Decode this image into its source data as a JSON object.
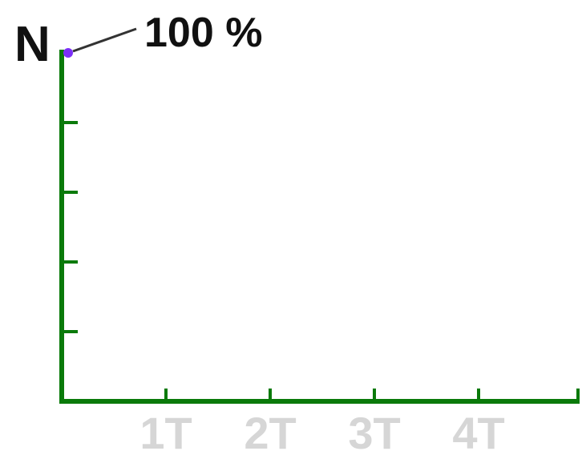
{
  "chart_data": {
    "type": "line",
    "title": "",
    "ylabel": "N",
    "xlabel": "",
    "categories": [
      "1T",
      "2T",
      "3T",
      "4T"
    ],
    "x_ticks": [
      "1T",
      "2T",
      "3T",
      "4T"
    ],
    "y_tick_count": 5,
    "xlim": [
      0,
      4
    ],
    "ylim": [
      0,
      100
    ],
    "series": [
      {
        "x": [
          0
        ],
        "y": [
          100
        ]
      }
    ],
    "annotation": {
      "text": "100 %",
      "x": 0,
      "y": 100
    },
    "grid": false,
    "legend": "none",
    "colors": {
      "axis": "#0a7a0a",
      "point": "#7b2ff7",
      "tick_label": "#d6d6d6",
      "text": "#111111"
    }
  }
}
